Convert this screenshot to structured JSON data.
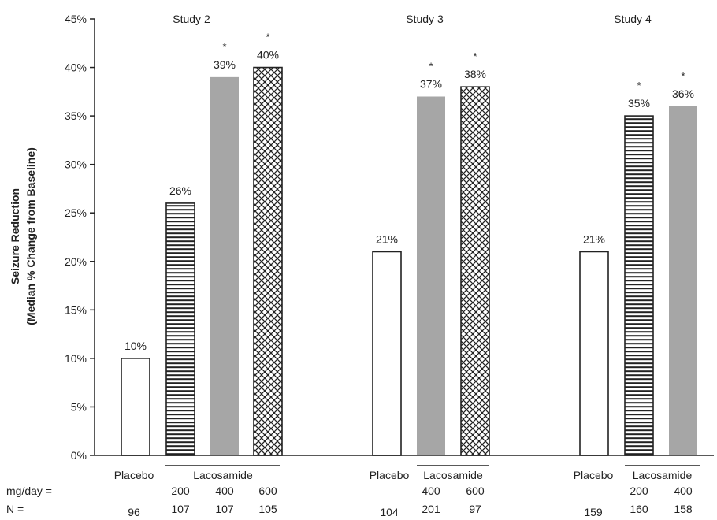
{
  "chart_data": {
    "type": "bar",
    "ylabel_line1": "Seizure Reduction",
    "ylabel_line2": "(Median % Change from Baseline)",
    "ylim": [
      0,
      45
    ],
    "yticks": [
      "0%",
      "5%",
      "10%",
      "15%",
      "20%",
      "25%",
      "30%",
      "35%",
      "40%",
      "45%"
    ],
    "row_labels": {
      "dose": "mg/day =",
      "n": "N ="
    },
    "legend": "none",
    "grid": false,
    "studies": [
      {
        "title": "Study 2",
        "placebo_label": "Placebo",
        "drug_label": "Lacosamide",
        "bars": [
          {
            "group": "placebo",
            "dose": "",
            "value": 10,
            "label": "10%",
            "n": "96",
            "pattern": "white",
            "star": ""
          },
          {
            "group": "lacosamide",
            "dose": "200",
            "value": 26,
            "label": "26%",
            "n": "107",
            "pattern": "stripe",
            "star": ""
          },
          {
            "group": "lacosamide",
            "dose": "400",
            "value": 39,
            "label": "39%",
            "n": "107",
            "pattern": "gray",
            "star": "*"
          },
          {
            "group": "lacosamide",
            "dose": "600",
            "value": 40,
            "label": "40%",
            "n": "105",
            "pattern": "cross",
            "star": "*"
          }
        ]
      },
      {
        "title": "Study 3",
        "placebo_label": "Placebo",
        "drug_label": "Lacosamide",
        "bars": [
          {
            "group": "placebo",
            "dose": "",
            "value": 21,
            "label": "21%",
            "n": "104",
            "pattern": "white",
            "star": ""
          },
          {
            "group": "lacosamide",
            "dose": "400",
            "value": 37,
            "label": "37%",
            "n": "201",
            "pattern": "gray",
            "star": "*"
          },
          {
            "group": "lacosamide",
            "dose": "600",
            "value": 38,
            "label": "38%",
            "n": "97",
            "pattern": "cross",
            "star": "*"
          }
        ]
      },
      {
        "title": "Study 4",
        "placebo_label": "Placebo",
        "drug_label": "Lacosamide",
        "bars": [
          {
            "group": "placebo",
            "dose": "",
            "value": 21,
            "label": "21%",
            "n": "159",
            "pattern": "white",
            "star": ""
          },
          {
            "group": "lacosamide",
            "dose": "200",
            "value": 35,
            "label": "35%",
            "n": "160",
            "pattern": "stripe",
            "star": "*"
          },
          {
            "group": "lacosamide",
            "dose": "400",
            "value": 36,
            "label": "36%",
            "n": "158",
            "pattern": "gray",
            "star": "*"
          }
        ]
      }
    ],
    "colors": {
      "gray": "#a6a6a6",
      "outline": "#222222",
      "background": "#ffffff"
    }
  }
}
